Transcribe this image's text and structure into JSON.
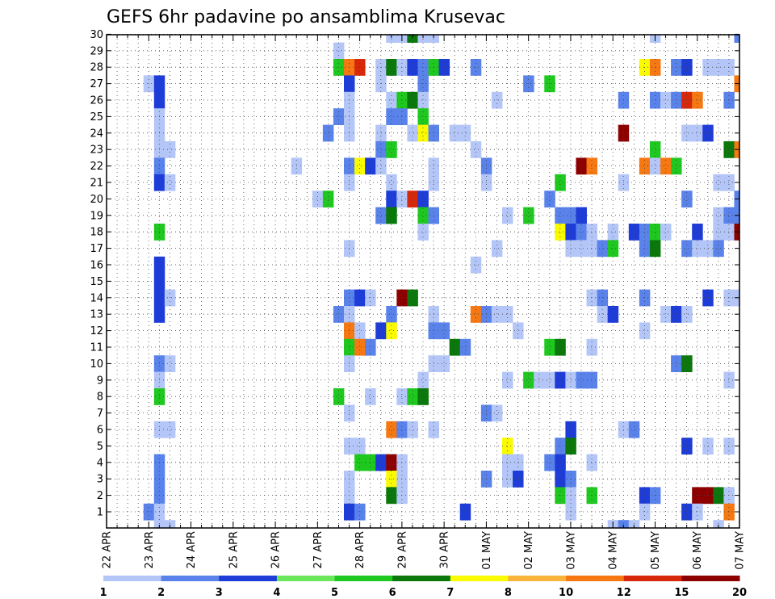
{
  "chart_data": {
    "type": "heatmap",
    "title": "GEFS 6hr padavine po ansamblima Krusevac",
    "xlabel": "",
    "ylabel": "",
    "x_tick_labels": [
      "22 APR",
      "23 APR",
      "24 APR",
      "25 APR",
      "26 APR",
      "27 APR",
      "28 APR",
      "29 APR",
      "30 APR",
      "01 MAY",
      "02 MAY",
      "03 MAY",
      "04 MAY",
      "05 MAY",
      "06 MAY",
      "07 MAY"
    ],
    "y_tick_labels": [
      "1",
      "2",
      "3",
      "4",
      "5",
      "6",
      "7",
      "8",
      "9",
      "10",
      "11",
      "12",
      "13",
      "14",
      "15",
      "16",
      "17",
      "18",
      "19",
      "20",
      "21",
      "22",
      "23",
      "24",
      "25",
      "26",
      "27",
      "28",
      "29",
      "30"
    ],
    "x_range_steps": [
      0,
      60
    ],
    "steps_per_day": 4,
    "grid": true,
    "colorbar": {
      "boundaries": [
        "1",
        "2",
        "3",
        "4",
        "5",
        "6",
        "7",
        "8",
        "10",
        "12",
        "15",
        "20"
      ],
      "colors": [
        "#b4c6f7",
        "#5a82eb",
        "#1e3cd7",
        "#6ae85a",
        "#1ec81e",
        "#0a780a",
        "#fafa00",
        "#fab43c",
        "#f57812",
        "#d7280a",
        "#8c0000"
      ]
    },
    "cells": [
      [
        27,
        "30",
        1
      ],
      [
        28,
        "30",
        1
      ],
      [
        29,
        "30",
        6
      ],
      [
        30,
        "30",
        1
      ],
      [
        31,
        "30",
        1
      ],
      [
        52,
        "30",
        1
      ],
      [
        60,
        "30",
        2
      ],
      [
        22,
        "29",
        1
      ],
      [
        22,
        "28",
        5
      ],
      [
        23,
        "28",
        9
      ],
      [
        24,
        "28",
        10
      ],
      [
        26,
        "28",
        1
      ],
      [
        27,
        "28",
        6
      ],
      [
        28,
        "28",
        1
      ],
      [
        29,
        "28",
        3
      ],
      [
        30,
        "28",
        2
      ],
      [
        31,
        "28",
        5
      ],
      [
        32,
        "28",
        3
      ],
      [
        35,
        "28",
        2
      ],
      [
        51,
        "28",
        7
      ],
      [
        52,
        "28",
        9
      ],
      [
        54,
        "28",
        2
      ],
      [
        55,
        "28",
        3
      ],
      [
        57,
        "28",
        1
      ],
      [
        58,
        "28",
        1
      ],
      [
        59,
        "28",
        1
      ],
      [
        4,
        "27",
        1
      ],
      [
        5,
        "27",
        3
      ],
      [
        23,
        "27",
        3
      ],
      [
        26,
        "27",
        1
      ],
      [
        30,
        "27",
        2
      ],
      [
        40,
        "27",
        2
      ],
      [
        42,
        "27",
        5
      ],
      [
        60,
        "27",
        9
      ],
      [
        5,
        "26",
        3
      ],
      [
        23,
        "26",
        1
      ],
      [
        27,
        "26",
        1
      ],
      [
        28,
        "26",
        5
      ],
      [
        29,
        "26",
        6
      ],
      [
        30,
        "26",
        1
      ],
      [
        37,
        "26",
        1
      ],
      [
        49,
        "26",
        2
      ],
      [
        52,
        "26",
        2
      ],
      [
        53,
        "26",
        1
      ],
      [
        54,
        "26",
        2
      ],
      [
        55,
        "26",
        10
      ],
      [
        56,
        "26",
        9
      ],
      [
        59,
        "26",
        2
      ],
      [
        5,
        "25",
        1
      ],
      [
        22,
        "25",
        2
      ],
      [
        23,
        "25",
        1
      ],
      [
        27,
        "25",
        2
      ],
      [
        28,
        "25",
        2
      ],
      [
        30,
        "25",
        5
      ],
      [
        5,
        "24",
        1
      ],
      [
        21,
        "24",
        2
      ],
      [
        23,
        "24",
        1
      ],
      [
        26,
        "24",
        1
      ],
      [
        29,
        "24",
        1
      ],
      [
        30,
        "24",
        7
      ],
      [
        31,
        "24",
        2
      ],
      [
        33,
        "24",
        1
      ],
      [
        34,
        "24",
        1
      ],
      [
        49,
        "24",
        11
      ],
      [
        55,
        "24",
        1
      ],
      [
        56,
        "24",
        1
      ],
      [
        57,
        "24",
        3
      ],
      [
        5,
        "23",
        1
      ],
      [
        6,
        "23",
        1
      ],
      [
        26,
        "23",
        2
      ],
      [
        27,
        "23",
        5
      ],
      [
        35,
        "23",
        1
      ],
      [
        52,
        "23",
        5
      ],
      [
        59,
        "23",
        6
      ],
      [
        60,
        "23",
        9
      ],
      [
        5,
        "22",
        2
      ],
      [
        18,
        "22",
        1
      ],
      [
        23,
        "22",
        2
      ],
      [
        24,
        "22",
        7
      ],
      [
        25,
        "22",
        3
      ],
      [
        26,
        "22",
        1
      ],
      [
        31,
        "22",
        1
      ],
      [
        36,
        "22",
        2
      ],
      [
        45,
        "22",
        11
      ],
      [
        46,
        "22",
        9
      ],
      [
        51,
        "22",
        9
      ],
      [
        52,
        "22",
        1
      ],
      [
        53,
        "22",
        9
      ],
      [
        54,
        "22",
        5
      ],
      [
        5,
        "21",
        3
      ],
      [
        6,
        "21",
        1
      ],
      [
        23,
        "21",
        1
      ],
      [
        27,
        "21",
        1
      ],
      [
        31,
        "21",
        1
      ],
      [
        36,
        "21",
        1
      ],
      [
        43,
        "21",
        5
      ],
      [
        49,
        "21",
        1
      ],
      [
        58,
        "21",
        1
      ],
      [
        59,
        "21",
        1
      ],
      [
        20,
        "20",
        1
      ],
      [
        21,
        "20",
        5
      ],
      [
        27,
        "20",
        3
      ],
      [
        28,
        "20",
        1
      ],
      [
        29,
        "20",
        10
      ],
      [
        30,
        "20",
        3
      ],
      [
        42,
        "20",
        2
      ],
      [
        55,
        "20",
        2
      ],
      [
        60,
        "20",
        2
      ],
      [
        26,
        "19",
        2
      ],
      [
        27,
        "19",
        6
      ],
      [
        30,
        "19",
        5
      ],
      [
        31,
        "19",
        2
      ],
      [
        38,
        "19",
        1
      ],
      [
        40,
        "19",
        5
      ],
      [
        43,
        "19",
        2
      ],
      [
        44,
        "19",
        2
      ],
      [
        45,
        "19",
        3
      ],
      [
        58,
        "19",
        1
      ],
      [
        59,
        "19",
        2
      ],
      [
        60,
        "19",
        2
      ],
      [
        5,
        "18",
        5
      ],
      [
        30,
        "18",
        1
      ],
      [
        43,
        "18",
        7
      ],
      [
        44,
        "18",
        3
      ],
      [
        45,
        "18",
        2
      ],
      [
        46,
        "18",
        1
      ],
      [
        48,
        "18",
        1
      ],
      [
        50,
        "18",
        3
      ],
      [
        51,
        "18",
        2
      ],
      [
        52,
        "18",
        5
      ],
      [
        53,
        "18",
        1
      ],
      [
        56,
        "18",
        3
      ],
      [
        58,
        "18",
        1
      ],
      [
        59,
        "18",
        1
      ],
      [
        60,
        "18",
        11
      ],
      [
        23,
        "17",
        1
      ],
      [
        37,
        "17",
        1
      ],
      [
        44,
        "17",
        1
      ],
      [
        45,
        "17",
        1
      ],
      [
        46,
        "17",
        1
      ],
      [
        47,
        "17",
        2
      ],
      [
        48,
        "17",
        5
      ],
      [
        51,
        "17",
        2
      ],
      [
        52,
        "17",
        6
      ],
      [
        55,
        "17",
        2
      ],
      [
        56,
        "17",
        1
      ],
      [
        57,
        "17",
        1
      ],
      [
        58,
        "17",
        2
      ],
      [
        5,
        "16",
        3
      ],
      [
        35,
        "16",
        1
      ],
      [
        5,
        "15",
        3
      ],
      [
        5,
        "14",
        3
      ],
      [
        6,
        "14",
        1
      ],
      [
        23,
        "14",
        2
      ],
      [
        24,
        "14",
        3
      ],
      [
        25,
        "14",
        1
      ],
      [
        28,
        "14",
        11
      ],
      [
        29,
        "14",
        6
      ],
      [
        46,
        "14",
        1
      ],
      [
        47,
        "14",
        2
      ],
      [
        51,
        "14",
        2
      ],
      [
        57,
        "14",
        3
      ],
      [
        59,
        "14",
        1
      ],
      [
        60,
        "14",
        1
      ],
      [
        5,
        "13",
        3
      ],
      [
        22,
        "13",
        2
      ],
      [
        23,
        "13",
        1
      ],
      [
        27,
        "13",
        2
      ],
      [
        31,
        "13",
        1
      ],
      [
        35,
        "13",
        9
      ],
      [
        36,
        "13",
        2
      ],
      [
        37,
        "13",
        1
      ],
      [
        38,
        "13",
        1
      ],
      [
        47,
        "13",
        1
      ],
      [
        48,
        "13",
        3
      ],
      [
        53,
        "13",
        1
      ],
      [
        54,
        "13",
        3
      ],
      [
        55,
        "13",
        1
      ],
      [
        23,
        "12",
        9
      ],
      [
        24,
        "12",
        1
      ],
      [
        26,
        "12",
        3
      ],
      [
        27,
        "12",
        7
      ],
      [
        31,
        "12",
        2
      ],
      [
        32,
        "12",
        2
      ],
      [
        39,
        "12",
        1
      ],
      [
        51,
        "12",
        1
      ],
      [
        23,
        "11",
        5
      ],
      [
        24,
        "11",
        9
      ],
      [
        25,
        "11",
        2
      ],
      [
        33,
        "11",
        6
      ],
      [
        34,
        "11",
        2
      ],
      [
        42,
        "11",
        5
      ],
      [
        43,
        "11",
        6
      ],
      [
        46,
        "11",
        1
      ],
      [
        5,
        "10",
        2
      ],
      [
        6,
        "10",
        1
      ],
      [
        23,
        "10",
        1
      ],
      [
        31,
        "10",
        1
      ],
      [
        32,
        "10",
        1
      ],
      [
        54,
        "10",
        2
      ],
      [
        55,
        "10",
        6
      ],
      [
        5,
        "9",
        1
      ],
      [
        30,
        "9",
        1
      ],
      [
        38,
        "9",
        1
      ],
      [
        40,
        "9",
        5
      ],
      [
        41,
        "9",
        1
      ],
      [
        42,
        "9",
        1
      ],
      [
        43,
        "9",
        3
      ],
      [
        44,
        "9",
        1
      ],
      [
        45,
        "9",
        2
      ],
      [
        46,
        "9",
        2
      ],
      [
        59,
        "9",
        1
      ],
      [
        5,
        "8",
        5
      ],
      [
        22,
        "8",
        5
      ],
      [
        25,
        "8",
        1
      ],
      [
        28,
        "8",
        1
      ],
      [
        29,
        "8",
        5
      ],
      [
        30,
        "8",
        6
      ],
      [
        23,
        "7",
        1
      ],
      [
        36,
        "7",
        2
      ],
      [
        37,
        "7",
        1
      ],
      [
        5,
        "6",
        1
      ],
      [
        6,
        "6",
        1
      ],
      [
        27,
        "6",
        9
      ],
      [
        28,
        "6",
        2
      ],
      [
        29,
        "6",
        1
      ],
      [
        31,
        "6",
        1
      ],
      [
        44,
        "6",
        3
      ],
      [
        49,
        "6",
        1
      ],
      [
        50,
        "6",
        2
      ],
      [
        23,
        "5",
        1
      ],
      [
        24,
        "5",
        1
      ],
      [
        38,
        "5",
        7
      ],
      [
        43,
        "5",
        2
      ],
      [
        44,
        "5",
        6
      ],
      [
        55,
        "5",
        3
      ],
      [
        57,
        "5",
        1
      ],
      [
        59,
        "5",
        1
      ],
      [
        5,
        "4",
        2
      ],
      [
        24,
        "4",
        5
      ],
      [
        25,
        "4",
        5
      ],
      [
        26,
        "4",
        3
      ],
      [
        27,
        "4",
        11
      ],
      [
        28,
        "4",
        1
      ],
      [
        38,
        "4",
        1
      ],
      [
        39,
        "4",
        1
      ],
      [
        42,
        "4",
        2
      ],
      [
        43,
        "4",
        3
      ],
      [
        46,
        "4",
        1
      ],
      [
        5,
        "3",
        2
      ],
      [
        23,
        "3",
        1
      ],
      [
        27,
        "3",
        7
      ],
      [
        28,
        "3",
        1
      ],
      [
        36,
        "3",
        2
      ],
      [
        38,
        "3",
        1
      ],
      [
        39,
        "3",
        3
      ],
      [
        43,
        "3",
        3
      ],
      [
        44,
        "3",
        2
      ],
      [
        5,
        "2",
        2
      ],
      [
        23,
        "2",
        1
      ],
      [
        27,
        "2",
        6
      ],
      [
        28,
        "2",
        1
      ],
      [
        43,
        "2",
        5
      ],
      [
        44,
        "2",
        1
      ],
      [
        46,
        "2",
        5
      ],
      [
        51,
        "2",
        3
      ],
      [
        52,
        "2",
        2
      ],
      [
        56,
        "2",
        11
      ],
      [
        57,
        "2",
        11
      ],
      [
        58,
        "2",
        6
      ],
      [
        59,
        "2",
        1
      ],
      [
        4,
        "1",
        2
      ],
      [
        5,
        "1",
        1
      ],
      [
        23,
        "1",
        3
      ],
      [
        24,
        "1",
        2
      ],
      [
        34,
        "1",
        3
      ],
      [
        44,
        "1",
        1
      ],
      [
        51,
        "1",
        1
      ],
      [
        55,
        "1",
        3
      ],
      [
        56,
        "1",
        1
      ],
      [
        59,
        "1",
        9
      ],
      [
        5,
        "0",
        1
      ],
      [
        6,
        "0",
        1
      ],
      [
        48,
        "0",
        1
      ],
      [
        49,
        "0",
        2
      ],
      [
        50,
        "0",
        1
      ],
      [
        58,
        "0",
        1
      ]
    ]
  }
}
